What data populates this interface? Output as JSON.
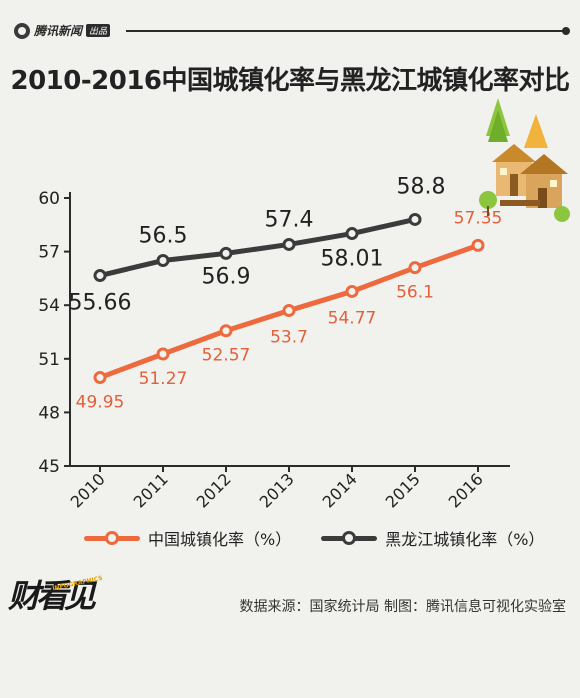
{
  "header": {
    "brand": "腾讯新闻",
    "brand_tag": "出品"
  },
  "title": "2010-2016中国城镇化率与黑龙江城镇化率对比",
  "chart_data": {
    "type": "line",
    "title": "2010-2016中国城镇化率与黑龙江城镇化率对比",
    "categories": [
      "2010",
      "2011",
      "2012",
      "2013",
      "2014",
      "2015",
      "2016"
    ],
    "ylim": [
      45,
      60
    ],
    "yticks": [
      60,
      57,
      54,
      51,
      48,
      45
    ],
    "grid": false,
    "legend_position": "bottom",
    "series": [
      {
        "name": "中国城镇化率（%）",
        "color": "#ec6a3d",
        "values": [
          49.95,
          51.27,
          52.57,
          53.7,
          54.77,
          56.1,
          57.35
        ],
        "labels": [
          "49.95",
          "51.27",
          "52.57",
          "53.7",
          "54.77",
          "56.1",
          "57.35"
        ]
      },
      {
        "name": "黑龙江城镇化率（%）",
        "color": "#3b3b3b",
        "values": [
          55.66,
          56.5,
          56.9,
          57.4,
          58.01,
          58.8,
          null
        ],
        "labels": [
          "55.66",
          "56.5",
          "56.9",
          "57.4",
          "58.01",
          "58.8",
          null
        ]
      }
    ]
  },
  "footer": {
    "source": "数据来源：国家统计局 制图：腾讯信息可视化实验室",
    "logo_text": "财看见",
    "logo_sub": "INFOGRAPHICS"
  }
}
